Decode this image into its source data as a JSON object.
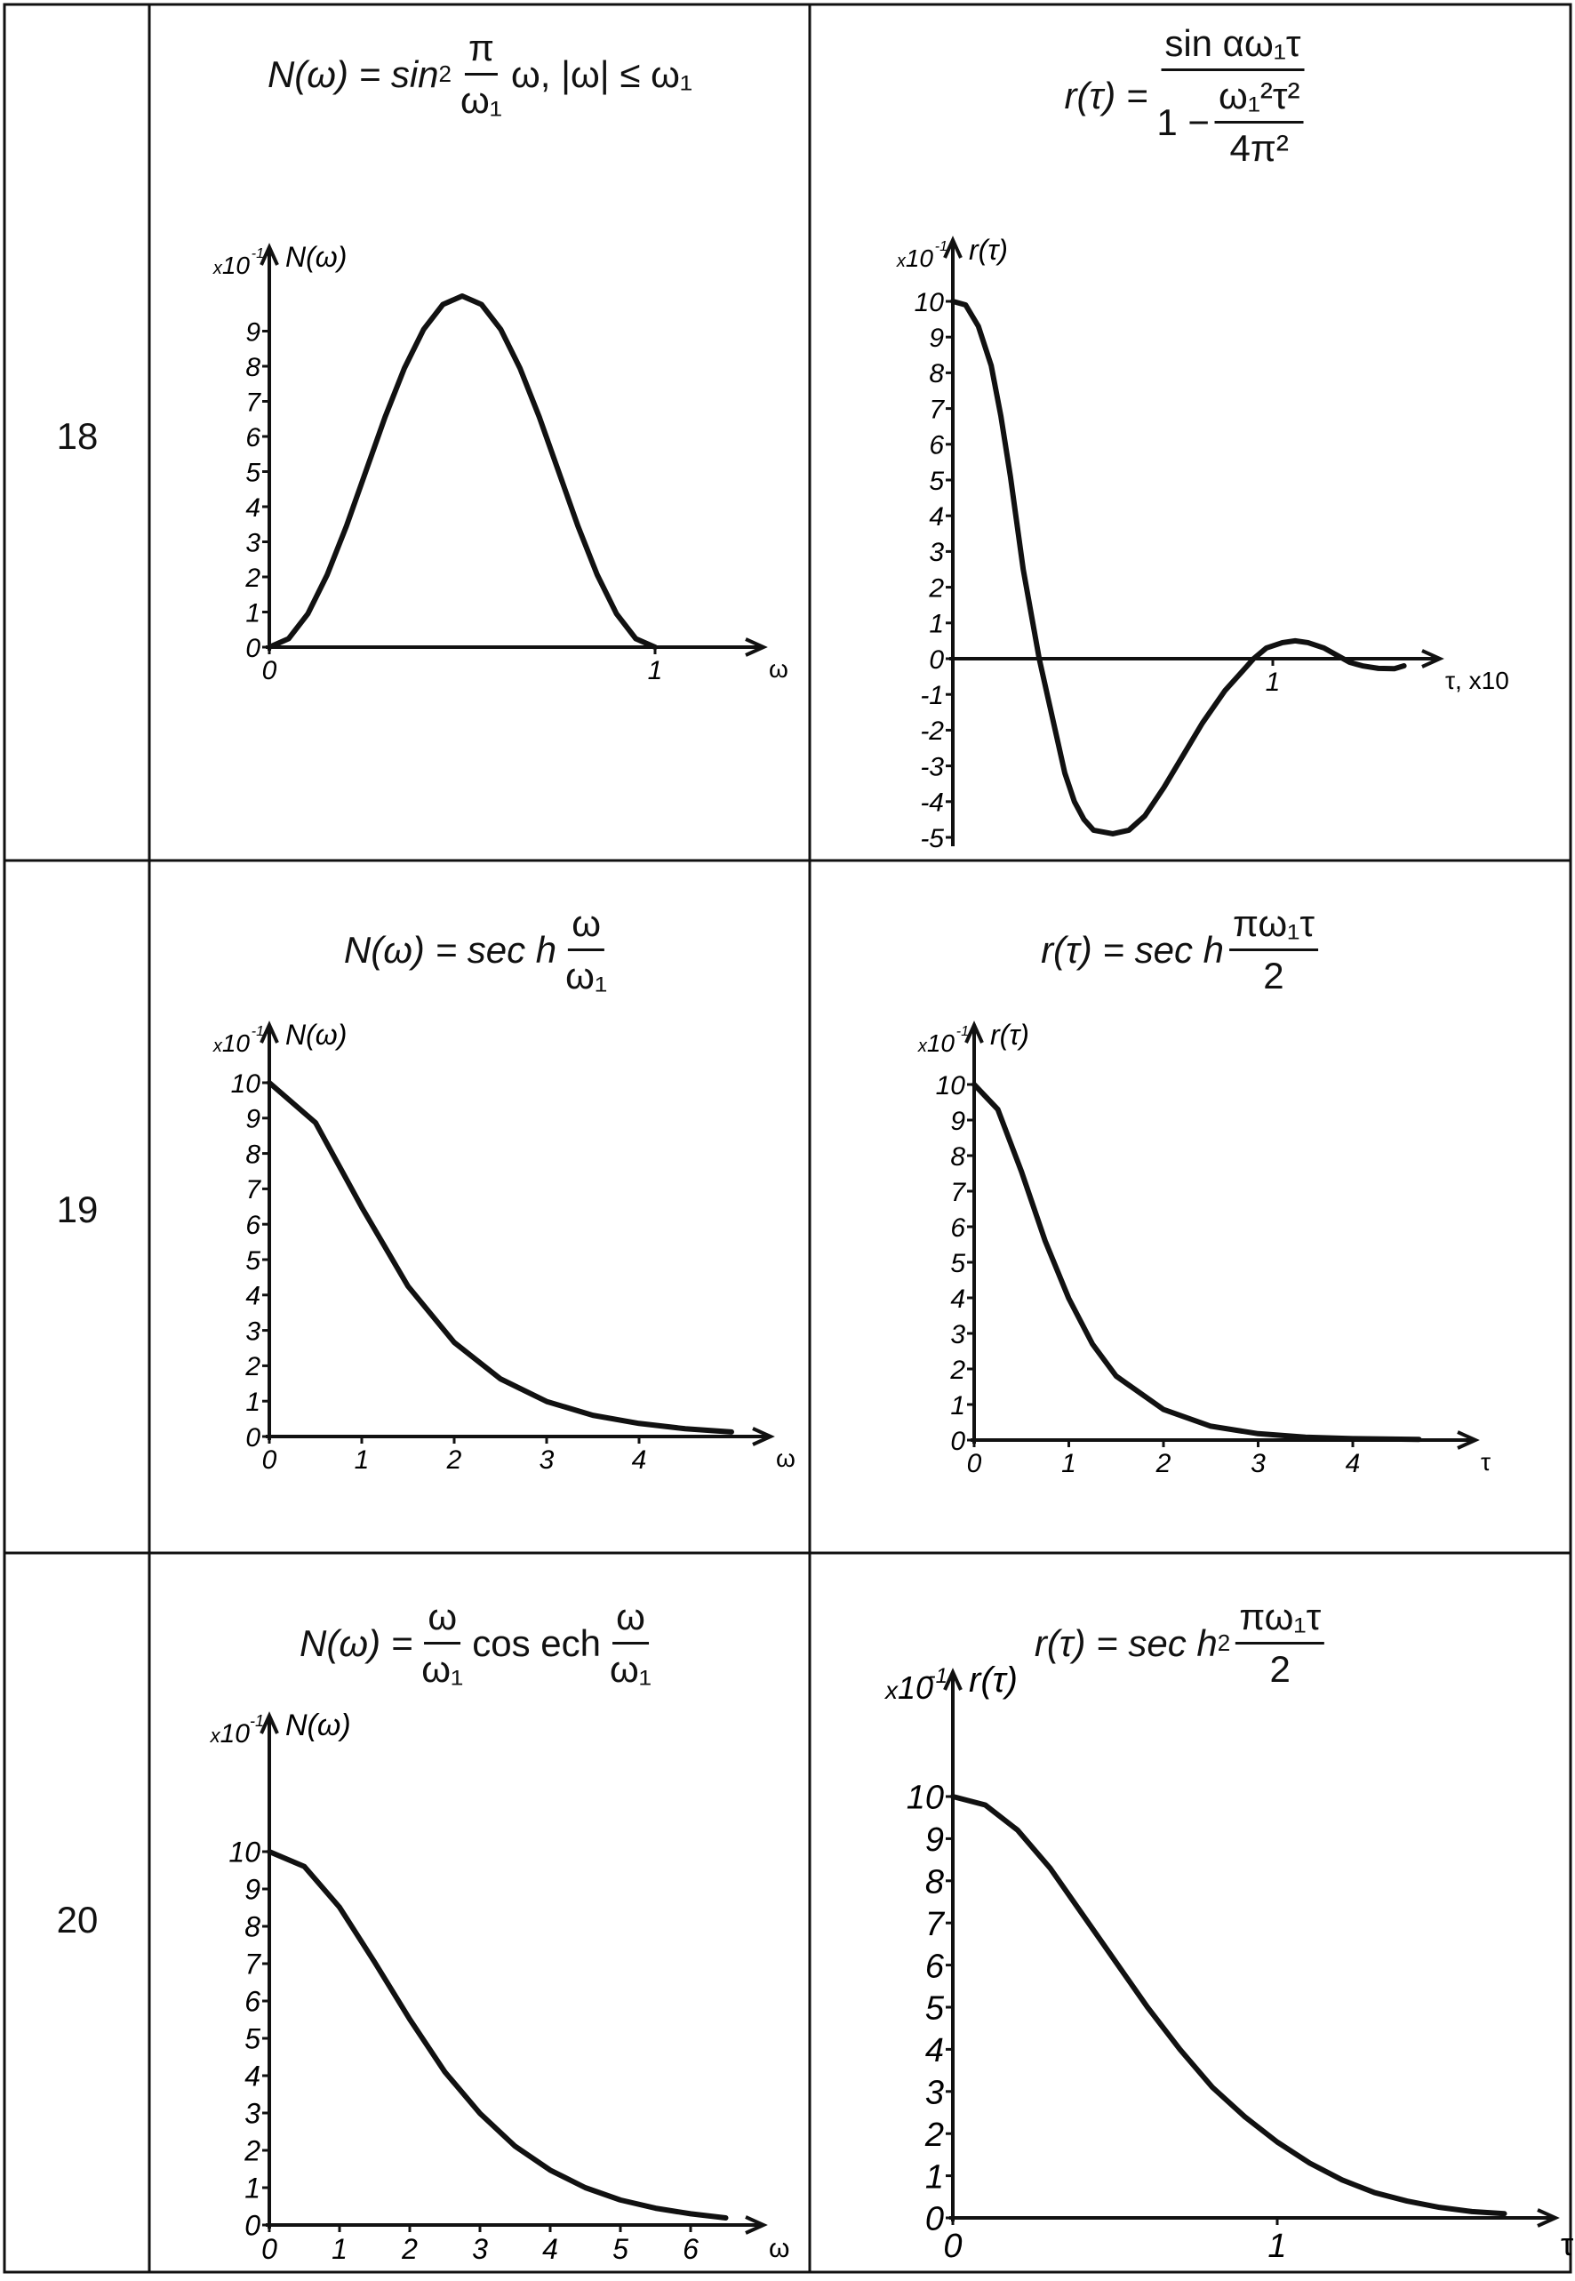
{
  "rows": [
    {
      "number": "18",
      "left_formula": {
        "lhs": "N(ω) = sin",
        "sup": "2",
        "num": "π",
        "den": "ω₁",
        "rest": "ω, |ω| ≤ ω₁"
      },
      "right_formula": {
        "lhs": "r(τ) =",
        "num": "sin αω₁τ",
        "den_lead": "1 −",
        "den_num": "ω₁²τ²",
        "den_den": "4π²"
      }
    },
    {
      "number": "19",
      "left_formula": {
        "lhs": "N(ω) = sec h",
        "num": "ω",
        "den": "ω₁"
      },
      "right_formula": {
        "lhs": "r(τ) = sec h",
        "num": "πω₁τ",
        "den": "2"
      }
    },
    {
      "number": "20",
      "left_formula": {
        "lhs": "N(ω) =",
        "num": "ω",
        "den": "ω₁",
        "mid": "cos ech",
        "num2": "ω",
        "den2": "ω₁"
      },
      "right_formula": {
        "lhs": "r(τ) = sec h",
        "sup": "2",
        "num": "πω₁τ",
        "den": "2"
      }
    }
  ],
  "chart_data": [
    {
      "type": "line",
      "row": "18",
      "ylabel": "N(ω)",
      "xlabel": "ω",
      "y_scale_prefix": "x10",
      "y_scale_exp": "-1",
      "xticks": [
        0,
        1
      ],
      "yticks": [
        0,
        1,
        2,
        3,
        4,
        5,
        6,
        7,
        8,
        9
      ],
      "xlim": [
        0,
        1.25
      ],
      "ylim": [
        0,
        10.5
      ],
      "points": [
        [
          0,
          0
        ],
        [
          0.05,
          0.24
        ],
        [
          0.1,
          0.95
        ],
        [
          0.15,
          2.06
        ],
        [
          0.2,
          3.45
        ],
        [
          0.25,
          5
        ],
        [
          0.3,
          6.55
        ],
        [
          0.35,
          7.94
        ],
        [
          0.4,
          9.05
        ],
        [
          0.45,
          9.76
        ],
        [
          0.5,
          10
        ],
        [
          0.55,
          9.76
        ],
        [
          0.6,
          9.05
        ],
        [
          0.65,
          7.94
        ],
        [
          0.7,
          6.55
        ],
        [
          0.75,
          5
        ],
        [
          0.8,
          3.45
        ],
        [
          0.85,
          2.06
        ],
        [
          0.9,
          0.95
        ],
        [
          0.95,
          0.24
        ],
        [
          1,
          0
        ]
      ]
    },
    {
      "type": "line",
      "row": "18",
      "ylabel": "r(τ)",
      "xlabel": "τ, x10",
      "y_scale_prefix": "x10",
      "y_scale_exp": "-1",
      "xticks": [
        1
      ],
      "yticks": [
        -5,
        -4,
        -3,
        -2,
        -1,
        0,
        1,
        2,
        3,
        4,
        5,
        6,
        7,
        8,
        9,
        10
      ],
      "xlim": [
        0,
        1.5
      ],
      "ylim": [
        -5.2,
        10.8
      ],
      "points": [
        [
          0,
          10
        ],
        [
          0.04,
          9.9
        ],
        [
          0.08,
          9.3
        ],
        [
          0.12,
          8.2
        ],
        [
          0.15,
          6.8
        ],
        [
          0.18,
          5.1
        ],
        [
          0.2,
          3.8
        ],
        [
          0.22,
          2.5
        ],
        [
          0.25,
          1
        ],
        [
          0.27,
          0
        ],
        [
          0.3,
          -1.2
        ],
        [
          0.32,
          -2
        ],
        [
          0.35,
          -3.2
        ],
        [
          0.38,
          -4
        ],
        [
          0.41,
          -4.5
        ],
        [
          0.44,
          -4.8
        ],
        [
          0.5,
          -4.9
        ],
        [
          0.55,
          -4.8
        ],
        [
          0.6,
          -4.4
        ],
        [
          0.66,
          -3.6
        ],
        [
          0.72,
          -2.7
        ],
        [
          0.78,
          -1.8
        ],
        [
          0.85,
          -0.9
        ],
        [
          0.9,
          -0.4
        ],
        [
          0.94,
          0
        ],
        [
          0.98,
          0.3
        ],
        [
          1.03,
          0.45
        ],
        [
          1.07,
          0.5
        ],
        [
          1.11,
          0.45
        ],
        [
          1.16,
          0.3
        ],
        [
          1.2,
          0.1
        ],
        [
          1.24,
          -0.1
        ],
        [
          1.28,
          -0.2
        ],
        [
          1.33,
          -0.27
        ],
        [
          1.38,
          -0.28
        ],
        [
          1.41,
          -0.2
        ]
      ]
    },
    {
      "type": "line",
      "row": "19",
      "ylabel": "N(ω)",
      "xlabel": "ω",
      "y_scale_prefix": "x10",
      "y_scale_exp": "-1",
      "xticks": [
        0,
        1,
        2,
        3,
        4
      ],
      "yticks": [
        0,
        1,
        2,
        3,
        4,
        5,
        6,
        7,
        8,
        9,
        10
      ],
      "xlim": [
        0,
        5.3
      ],
      "ylim": [
        0,
        11
      ],
      "points": [
        [
          0,
          10
        ],
        [
          0.5,
          8.87
        ],
        [
          1,
          6.48
        ],
        [
          1.5,
          4.25
        ],
        [
          2,
          2.66
        ],
        [
          2.5,
          1.63
        ],
        [
          3,
          0.99
        ],
        [
          3.5,
          0.6
        ],
        [
          4,
          0.37
        ],
        [
          4.5,
          0.22
        ],
        [
          5,
          0.13
        ]
      ]
    },
    {
      "type": "line",
      "row": "19",
      "ylabel": "r(τ)",
      "xlabel": "τ",
      "y_scale_prefix": "x10",
      "y_scale_exp": "-1",
      "xticks": [
        0,
        1,
        2,
        3,
        4
      ],
      "yticks": [
        0,
        1,
        2,
        3,
        4,
        5,
        6,
        7,
        8,
        9,
        10
      ],
      "xlim": [
        0,
        5.3
      ],
      "ylim": [
        0,
        11
      ],
      "points": [
        [
          0,
          10
        ],
        [
          0.25,
          9.3
        ],
        [
          0.5,
          7.55
        ],
        [
          0.75,
          5.6
        ],
        [
          1,
          3.98
        ],
        [
          1.25,
          2.7
        ],
        [
          1.5,
          1.8
        ],
        [
          2,
          0.86
        ],
        [
          2.5,
          0.39
        ],
        [
          3,
          0.18
        ],
        [
          3.5,
          0.08
        ],
        [
          4,
          0.04
        ],
        [
          4.7,
          0.02
        ]
      ]
    },
    {
      "type": "line",
      "row": "20",
      "ylabel": "N(ω)",
      "xlabel": "ω",
      "y_scale_prefix": "x10",
      "y_scale_exp": "-1",
      "xticks": [
        0,
        1,
        2,
        3,
        4,
        5,
        6
      ],
      "yticks": [
        0,
        1,
        2,
        3,
        4,
        5,
        6,
        7,
        8,
        9,
        10
      ],
      "xlim": [
        0,
        7
      ],
      "ylim": [
        0,
        11
      ],
      "points": [
        [
          0,
          10
        ],
        [
          0.5,
          9.6
        ],
        [
          1,
          8.51
        ],
        [
          1.5,
          7.04
        ],
        [
          2,
          5.51
        ],
        [
          2.5,
          4.1
        ],
        [
          3,
          2.99
        ],
        [
          3.5,
          2.11
        ],
        [
          4,
          1.47
        ],
        [
          4.5,
          1
        ],
        [
          5,
          0.67
        ],
        [
          5.5,
          0.45
        ],
        [
          6,
          0.3
        ],
        [
          6.5,
          0.19
        ]
      ]
    },
    {
      "type": "line",
      "row": "20",
      "ylabel": "r(τ)",
      "xlabel": "τ",
      "y_scale_prefix": "x10",
      "y_scale_exp": "-1",
      "xticks": [
        0,
        1
      ],
      "yticks": [
        0,
        1,
        2,
        3,
        4,
        5,
        6,
        7,
        8,
        9,
        10
      ],
      "xlim": [
        0,
        1.85
      ],
      "ylim": [
        0,
        11
      ],
      "points": [
        [
          0,
          10
        ],
        [
          0.1,
          9.8
        ],
        [
          0.2,
          9.2
        ],
        [
          0.3,
          8.3
        ],
        [
          0.4,
          7.2
        ],
        [
          0.5,
          6.1
        ],
        [
          0.6,
          5
        ],
        [
          0.7,
          4
        ],
        [
          0.8,
          3.1
        ],
        [
          0.9,
          2.4
        ],
        [
          1,
          1.8
        ],
        [
          1.1,
          1.3
        ],
        [
          1.2,
          0.9
        ],
        [
          1.3,
          0.6
        ],
        [
          1.4,
          0.4
        ],
        [
          1.5,
          0.25
        ],
        [
          1.6,
          0.15
        ],
        [
          1.7,
          0.1
        ]
      ]
    }
  ]
}
